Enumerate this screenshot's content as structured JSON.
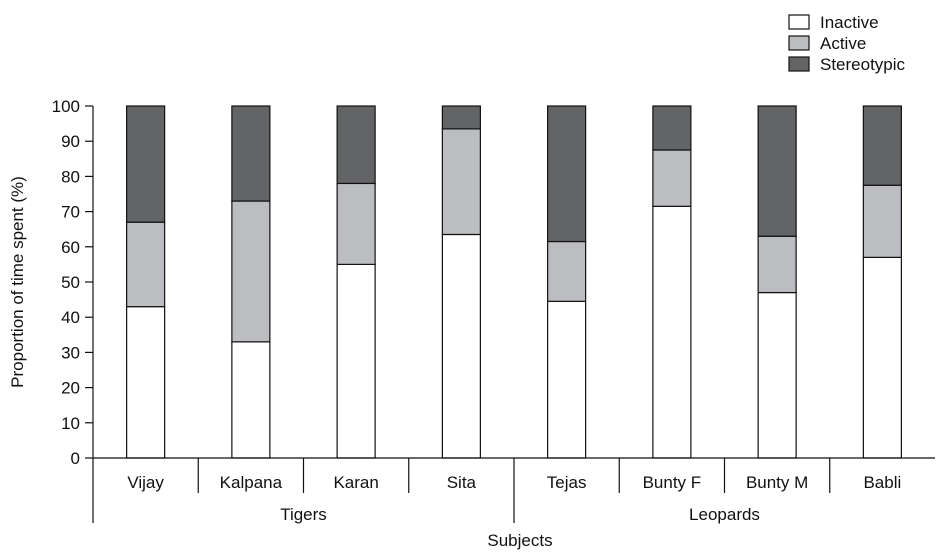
{
  "chart_data": {
    "type": "bar",
    "stacked": true,
    "categories": [
      "Vijay",
      "Kalpana",
      "Karan",
      "Sita",
      "Tejas",
      "Bunty F",
      "Bunty M",
      "Babli"
    ],
    "groups": [
      {
        "label": "Tigers",
        "members": [
          "Vijay",
          "Kalpana",
          "Karan",
          "Sita"
        ]
      },
      {
        "label": "Leopards",
        "members": [
          "Tejas",
          "Bunty F",
          "Bunty M",
          "Babli"
        ]
      }
    ],
    "series": [
      {
        "name": "Inactive",
        "color": "#ffffff",
        "values": [
          43,
          33,
          55,
          63.5,
          44.5,
          71.5,
          47,
          57
        ]
      },
      {
        "name": "Active",
        "color": "#bcbdc0",
        "values": [
          24,
          40,
          23,
          30,
          17,
          16,
          16,
          20.5
        ]
      },
      {
        "name": "Stereotypic",
        "color": "#636466",
        "values": [
          33,
          27,
          22,
          6.5,
          38.5,
          12.5,
          37,
          22.5
        ]
      }
    ],
    "title": "",
    "xlabel": "Subjects",
    "ylabel": "Proportion of time spent (%)",
    "ylim": [
      0,
      100
    ],
    "yticks": [
      0,
      10,
      20,
      30,
      40,
      50,
      60,
      70,
      80,
      90,
      100
    ],
    "grid": false,
    "legend": "top-right"
  }
}
